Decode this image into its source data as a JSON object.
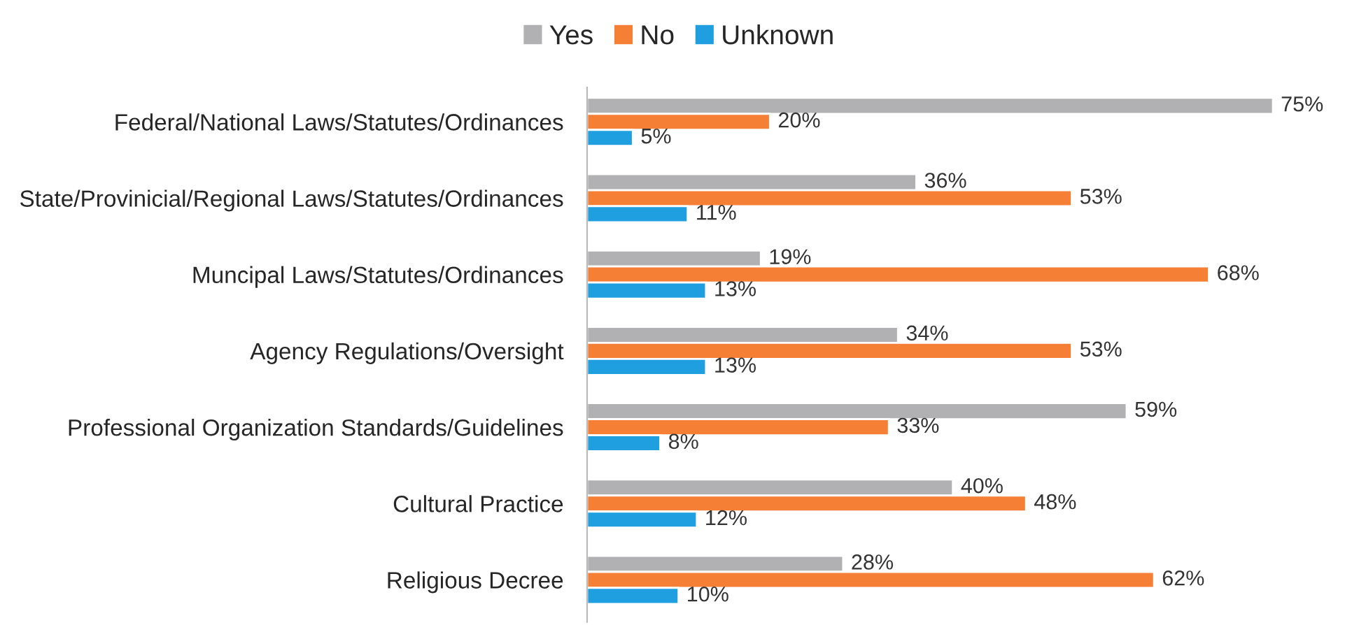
{
  "chart_data": {
    "type": "bar",
    "orientation": "horizontal",
    "legend": "top",
    "grid": false,
    "categories": [
      "Federal/National Laws/Statutes/Ordinances",
      "State/Provinicial/Regional Laws/Statutes/Ordinances",
      "Muncipal Laws/Statutes/Ordinances",
      "Agency Regulations/Oversight",
      "Professional Organization Standards/Guidelines",
      "Cultural Practice",
      "Religious Decree"
    ],
    "series": [
      {
        "name": "Yes",
        "color": "#b1b0b2",
        "values": [
          75,
          36,
          19,
          34,
          59,
          40,
          28
        ],
        "value_labels": [
          "75%",
          "36%",
          "19%",
          "34%",
          "59%",
          "40%",
          "28%"
        ]
      },
      {
        "name": "No",
        "color": "#f47f35",
        "values": [
          20,
          53,
          68,
          53,
          33,
          48,
          62
        ],
        "value_labels": [
          "20%",
          "53%",
          "68%",
          "53%",
          "33%",
          "48%",
          "62%"
        ]
      },
      {
        "name": "Unknown",
        "color": "#1f9ee0",
        "values": [
          5,
          11,
          13,
          13,
          8,
          12,
          10
        ],
        "value_labels": [
          "5%",
          "11%",
          "13%",
          "13%",
          "8%",
          "12%",
          "10%"
        ]
      }
    ]
  }
}
